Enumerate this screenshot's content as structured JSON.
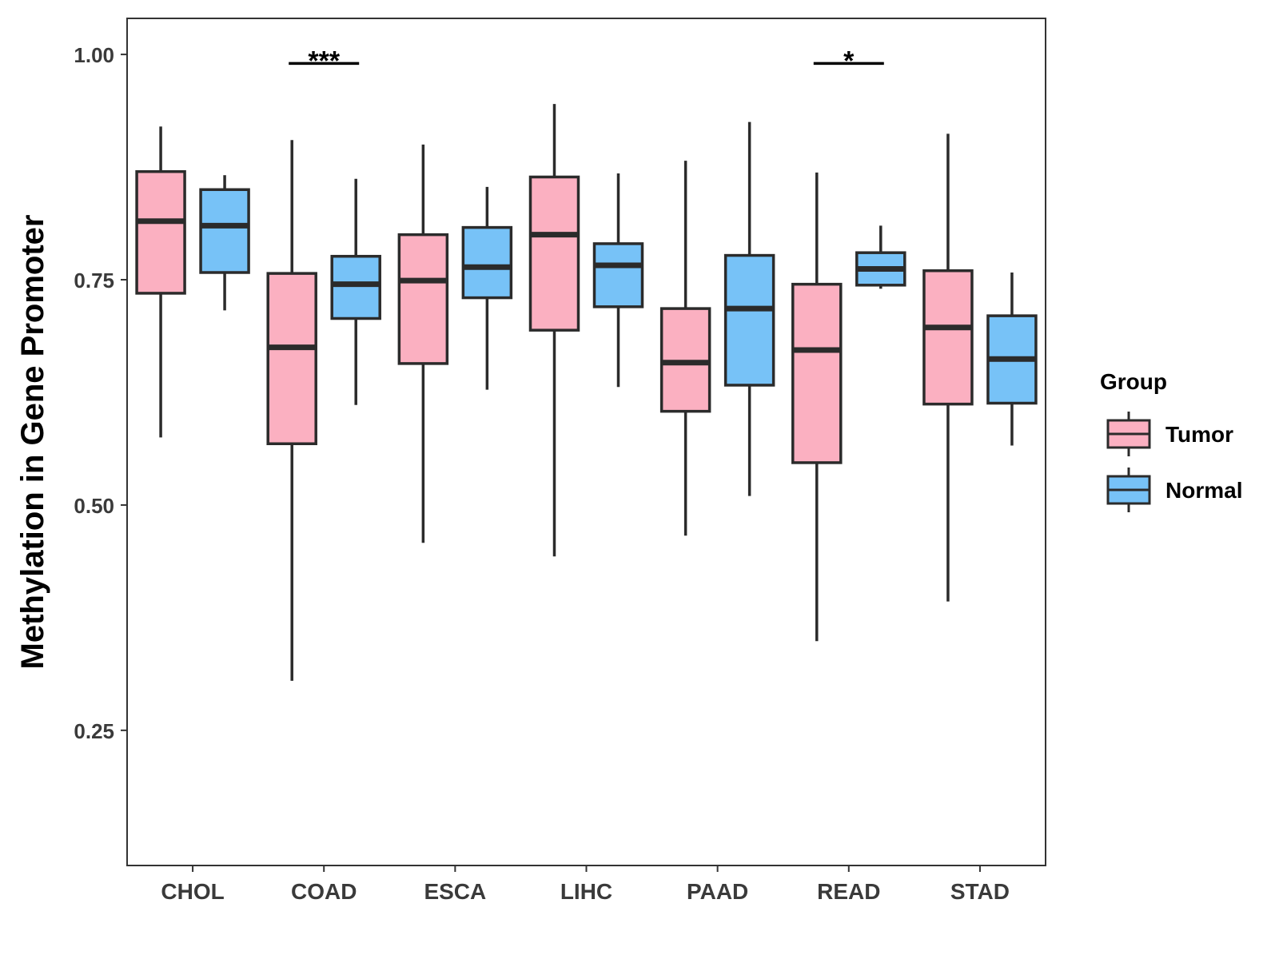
{
  "chart_data": {
    "type": "boxplot",
    "title": "",
    "xlabel": "",
    "ylabel": "Methylation in Gene Promoter",
    "ylim": [
      0.1,
      1.04
    ],
    "yticks": [
      0.25,
      0.5,
      0.75,
      1.0
    ],
    "ytick_labels": [
      "0.25",
      "0.50",
      "0.75",
      "1.00"
    ],
    "categories": [
      "CHOL",
      "COAD",
      "ESCA",
      "LIHC",
      "PAAD",
      "READ",
      "STAD"
    ],
    "series": [
      {
        "name": "Tumor",
        "color": "#FBB0C1",
        "boxes": [
          {
            "min": 0.575,
            "q1": 0.735,
            "median": 0.815,
            "q3": 0.87,
            "max": 0.92
          },
          {
            "min": 0.305,
            "q1": 0.568,
            "median": 0.675,
            "q3": 0.757,
            "max": 0.905
          },
          {
            "min": 0.458,
            "q1": 0.657,
            "median": 0.749,
            "q3": 0.8,
            "max": 0.9
          },
          {
            "min": 0.443,
            "q1": 0.694,
            "median": 0.8,
            "q3": 0.864,
            "max": 0.945
          },
          {
            "min": 0.466,
            "q1": 0.604,
            "median": 0.658,
            "q3": 0.718,
            "max": 0.882
          },
          {
            "min": 0.349,
            "q1": 0.547,
            "median": 0.672,
            "q3": 0.745,
            "max": 0.869
          },
          {
            "min": 0.393,
            "q1": 0.612,
            "median": 0.697,
            "q3": 0.76,
            "max": 0.912
          }
        ]
      },
      {
        "name": "Normal",
        "color": "#77C2F7",
        "boxes": [
          {
            "min": 0.716,
            "q1": 0.758,
            "median": 0.81,
            "q3": 0.85,
            "max": 0.866
          },
          {
            "min": 0.611,
            "q1": 0.707,
            "median": 0.745,
            "q3": 0.776,
            "max": 0.862
          },
          {
            "min": 0.628,
            "q1": 0.73,
            "median": 0.764,
            "q3": 0.808,
            "max": 0.853
          },
          {
            "min": 0.631,
            "q1": 0.72,
            "median": 0.766,
            "q3": 0.79,
            "max": 0.868
          },
          {
            "min": 0.51,
            "q1": 0.633,
            "median": 0.718,
            "q3": 0.777,
            "max": 0.925
          },
          {
            "min": 0.74,
            "q1": 0.744,
            "median": 0.762,
            "q3": 0.78,
            "max": 0.81
          },
          {
            "min": 0.566,
            "q1": 0.613,
            "median": 0.662,
            "q3": 0.71,
            "max": 0.758
          }
        ]
      }
    ],
    "annotations": [
      {
        "category": "COAD",
        "label": "***",
        "y": 0.99
      },
      {
        "category": "READ",
        "label": "*",
        "y": 0.99
      }
    ],
    "legend": {
      "title": "Group",
      "position": "right",
      "entries": [
        "Tumor",
        "Normal"
      ]
    },
    "grid": false
  },
  "colors": {
    "tumor": "#FBB0C1",
    "normal": "#77C2F7",
    "stroke": "#2b2b2b",
    "panel_border": "#333333",
    "tick_text": "#3a3a3a"
  }
}
